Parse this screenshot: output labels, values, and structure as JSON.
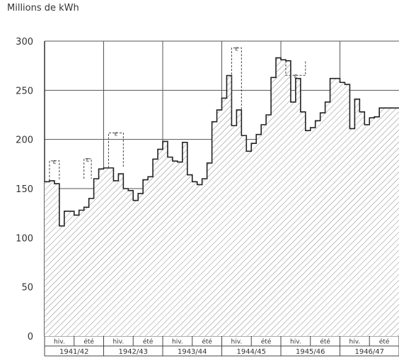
{
  "chart_data": {
    "type": "area",
    "ylabel": "Millions de kWh",
    "ylim": [
      0,
      300
    ],
    "yticks": [
      0,
      50,
      100,
      150,
      200,
      250,
      300
    ],
    "grid": true,
    "seasons": [
      "hiv.",
      "été"
    ],
    "years": [
      "1941/42",
      "1942/43",
      "1943/44",
      "1944/45",
      "1945/46",
      "1946/47"
    ],
    "monthly_values": [
      [
        157,
        158,
        155,
        112,
        127,
        127,
        123,
        128,
        131,
        140,
        160,
        170
      ],
      [
        171,
        171,
        158,
        165,
        150,
        148,
        138,
        145,
        159,
        162,
        180,
        190
      ],
      [
        198,
        182,
        178,
        177,
        197,
        164,
        157,
        154,
        160,
        176,
        218,
        230
      ],
      [
        242,
        265,
        214,
        230,
        204,
        188,
        196,
        205,
        215,
        225,
        263,
        283
      ],
      [
        281,
        280,
        238,
        262,
        228,
        209,
        212,
        219,
        227,
        238,
        262,
        262
      ],
      [
        258,
        256,
        211,
        241,
        228,
        215,
        222,
        223,
        232,
        232,
        232,
        232
      ]
    ],
    "annotation_label": "ε",
    "annotation_count": 6
  }
}
